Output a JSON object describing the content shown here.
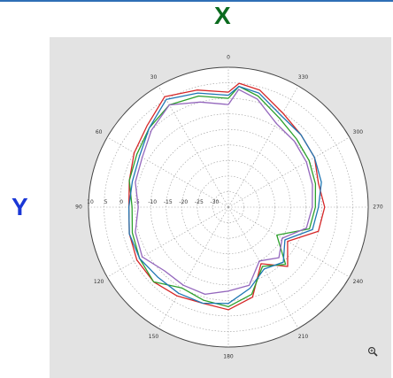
{
  "header": {
    "x_label": "X"
  },
  "side": {
    "y_label": "Y"
  },
  "colors": {
    "header_line": "#2f6fb6",
    "x_label": "#0b6b1f",
    "y_label": "#1a37d6",
    "panel_bg": "#e3e3e3",
    "polar_bg": "#ffffff",
    "grid": "#9a9a9a"
  },
  "toolbar": {
    "zoom_icon": "magnifier-plus-icon"
  },
  "chart_data": {
    "type": "line",
    "subtype": "polar",
    "title": "",
    "theta_direction": "clockwise",
    "theta_zero": "top",
    "angle_ticks": [
      "0",
      "30",
      "60",
      "90",
      "120",
      "150",
      "180",
      "210",
      "240",
      "270",
      "300",
      "330"
    ],
    "angle_tick_degrees": [
      0,
      30,
      60,
      90,
      120,
      150,
      180,
      210,
      240,
      270,
      300,
      330
    ],
    "radial_ticks": [
      "10",
      "5",
      "0",
      "-5",
      "-10",
      "-15",
      "-20",
      "-25",
      "-30"
    ],
    "radial_tick_values": [
      10,
      5,
      0,
      -5,
      -10,
      -15,
      -20,
      -25,
      -30
    ],
    "rlim": [
      -35,
      10
    ],
    "grid": true,
    "series": [
      {
        "color": "#d62728",
        "theta": [
          0,
          15,
          30,
          45,
          60,
          75,
          90,
          105,
          120,
          135,
          150,
          165,
          180,
          195,
          210,
          225,
          240,
          255,
          270,
          285,
          300,
          315,
          330,
          345,
          355
        ],
        "r": [
          2,
          4,
          6,
          2,
          0,
          -2,
          -3,
          -2,
          -1,
          -1,
          -2,
          -3,
          -2,
          -5,
          -14,
          -8,
          -13,
          -5,
          -4,
          -5,
          -3,
          -2,
          0,
          4,
          5
        ]
      },
      {
        "color": "#2ca02c",
        "theta": [
          0,
          15,
          30,
          45,
          60,
          75,
          90,
          105,
          120,
          135,
          150,
          165,
          180,
          195,
          210,
          225,
          240,
          255,
          270,
          285,
          300,
          315,
          330,
          345,
          355
        ],
        "r": [
          0,
          2,
          3,
          1,
          -1,
          -2,
          -4,
          -3,
          -2,
          -1,
          -5,
          -4,
          -3,
          -6,
          -13,
          -9,
          -17,
          -8,
          -7,
          -6,
          -5,
          -4,
          -2,
          2,
          4
        ]
      },
      {
        "color": "#1f77b4",
        "theta": [
          0,
          15,
          30,
          45,
          60,
          75,
          90,
          105,
          120,
          135,
          150,
          165,
          180,
          195,
          210,
          225,
          240,
          255,
          270,
          285,
          300,
          315,
          330,
          345,
          355
        ],
        "r": [
          1,
          3,
          5,
          1,
          -2,
          -3,
          -3,
          -2,
          -2,
          -3,
          -3,
          -3,
          -4,
          -8,
          -12,
          -10,
          -14,
          -7,
          -6,
          -4,
          -3,
          -2,
          -1,
          3,
          4
        ]
      },
      {
        "color": "#9467bd",
        "theta": [
          0,
          15,
          30,
          45,
          60,
          75,
          90,
          105,
          120,
          135,
          150,
          165,
          180,
          195,
          210,
          225,
          240,
          255,
          270,
          285,
          300,
          315,
          330,
          345,
          355
        ],
        "r": [
          -2,
          0,
          3,
          0,
          -3,
          -4,
          -6,
          -4,
          -3,
          -6,
          -6,
          -6,
          -8,
          -9,
          -15,
          -12,
          -15,
          -9,
          -8,
          -7,
          -6,
          -5,
          -4,
          1,
          3
        ]
      }
    ]
  }
}
